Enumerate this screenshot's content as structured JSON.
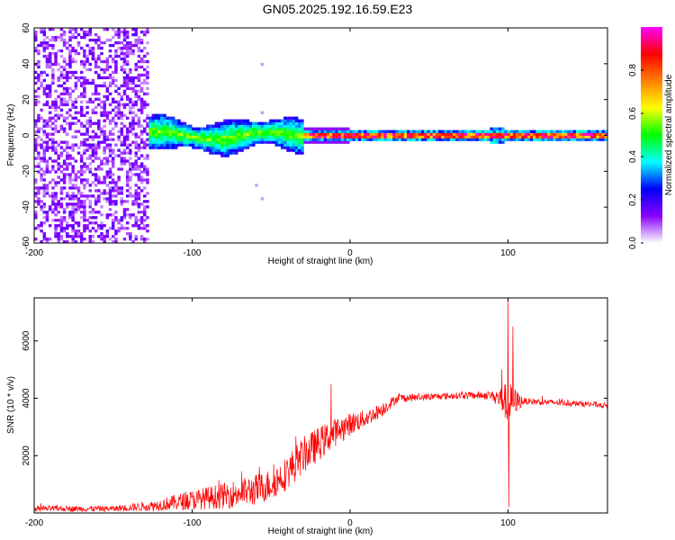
{
  "title": "GN05.2025.192.16.59.E23",
  "chart_data": [
    {
      "type": "heatmap",
      "xlabel": "Height of straight line (km)",
      "ylabel": "Frequency (Hz)",
      "xlim": [
        -200,
        163
      ],
      "ylim": [
        -60,
        60
      ],
      "x_ticks": [
        -200,
        -100,
        0,
        100
      ],
      "y_ticks": [
        -60,
        -40,
        -20,
        0,
        20,
        40,
        60
      ],
      "colorbar": {
        "label": "Normalized spectral amplitude",
        "range": [
          0,
          1
        ],
        "ticks": [
          0.0,
          0.2,
          0.4,
          0.6,
          0.8
        ],
        "tick_labels": [
          "0.0",
          "0.2",
          "0.4",
          "0.6",
          "0.8"
        ],
        "colormap": [
          "#ffffff",
          "#8800ff",
          "#0000ff",
          "#00ffff",
          "#00ff00",
          "#ffff00",
          "#ff8000",
          "#ff0000",
          "#ff00ff"
        ]
      },
      "features": [
        {
          "description": "noise",
          "x_range": [
            -200,
            -128
          ],
          "freq_range": [
            -60,
            60
          ],
          "amplitude": 0.15
        },
        {
          "description": "signal band",
          "x_range": [
            -128,
            -30
          ],
          "center_freq": 0,
          "half_width": 8,
          "amplitude": 0.35
        },
        {
          "description": "carrier line",
          "x_range": [
            -30,
            163
          ],
          "center_freq": 0,
          "half_width": 2,
          "amplitude": 0.9
        }
      ]
    },
    {
      "type": "line",
      "xlabel": "Height of straight line (km)",
      "ylabel": "SNR (10 * v/v)",
      "xlim": [
        -200,
        163
      ],
      "ylim": [
        0,
        7500
      ],
      "x_ticks": [
        -200,
        -100,
        0,
        100
      ],
      "y_ticks": [
        2000,
        4000,
        6000
      ],
      "color": "#ff0000",
      "envelope": {
        "x": [
          -200,
          -150,
          -125,
          -100,
          -80,
          -60,
          -50,
          -40,
          -30,
          -20,
          -10,
          0,
          10,
          20,
          30,
          50,
          70,
          90,
          98,
          100,
          102,
          110,
          130,
          150,
          163
        ],
        "mean": [
          150,
          150,
          250,
          450,
          600,
          800,
          1000,
          1400,
          2000,
          2400,
          2800,
          3100,
          3300,
          3600,
          4000,
          4050,
          4100,
          4100,
          3900,
          3800,
          3900,
          3900,
          3850,
          3800,
          3750
        ],
        "noise": [
          100,
          100,
          180,
          350,
          450,
          550,
          550,
          600,
          650,
          600,
          500,
          400,
          300,
          250,
          150,
          120,
          120,
          150,
          600,
          900,
          600,
          120,
          100,
          100,
          100
        ]
      },
      "spikes": [
        {
          "x": -12,
          "y": 4500
        },
        {
          "x": 100,
          "y": 7400
        },
        {
          "x": 100.5,
          "y": 200
        },
        {
          "x": 103,
          "y": 6500
        },
        {
          "x": 96,
          "y": 5000
        }
      ]
    }
  ]
}
